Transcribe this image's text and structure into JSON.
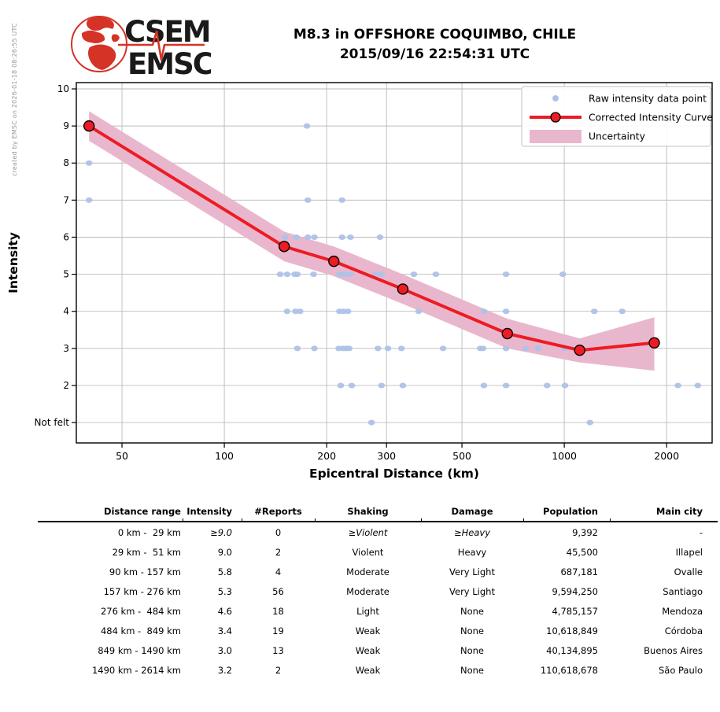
{
  "credit": "created by EMSC on 2026-01-18 08:26:55 UTC",
  "logo": {
    "top": "CSEM",
    "bottom": "EMSC",
    "brand_red": "#d63327",
    "text_color": "#1a1a1a"
  },
  "title": {
    "line1": "M8.3 in OFFSHORE COQUIMBO, CHILE",
    "line2": "2015/09/16 22:54:31 UTC"
  },
  "chart_data": {
    "type": "scatter+line",
    "title": "",
    "xlabel": "Epicentral Distance (km)",
    "ylabel": "Intensity",
    "x_scale": "log",
    "xlim": [
      36.7,
      2722
    ],
    "ylim": [
      0.45,
      10.17
    ],
    "grid": true,
    "legend_position": "upper right",
    "x_ticks": [
      {
        "value": 50,
        "label": "50"
      },
      {
        "value": 100,
        "label": "100"
      },
      {
        "value": 200,
        "label": "200"
      },
      {
        "value": 300,
        "label": "300"
      },
      {
        "value": 500,
        "label": "500"
      },
      {
        "value": 1000,
        "label": "1000"
      },
      {
        "value": 2000,
        "label": "2000"
      }
    ],
    "y_ticks": [
      {
        "value": 10,
        "label": "10"
      },
      {
        "value": 9,
        "label": "9"
      },
      {
        "value": 8,
        "label": "8"
      },
      {
        "value": 7,
        "label": "7"
      },
      {
        "value": 6,
        "label": "6"
      },
      {
        "value": 5,
        "label": "5"
      },
      {
        "value": 4,
        "label": "4"
      },
      {
        "value": 3,
        "label": "3"
      },
      {
        "value": 2,
        "label": "2"
      },
      {
        "value": 1,
        "label": "Not felt"
      }
    ],
    "legend": [
      {
        "type": "dot",
        "label": "Raw intensity data point"
      },
      {
        "type": "line-marker",
        "label": "Corrected Intensity Curve"
      },
      {
        "type": "patch",
        "label": "Uncertainty"
      }
    ],
    "colors": {
      "raw_point": "#aec2e8",
      "curve": "#ed1c24",
      "uncertainty": "#e9b7cd",
      "grid": "#bbbbbb",
      "legend_border": "#cccccc"
    },
    "corrected_curve": {
      "distance_km": [
        40,
        150,
        210,
        335,
        680,
        1110,
        1840
      ],
      "intensity": [
        9.0,
        5.75,
        5.35,
        4.6,
        3.4,
        2.95,
        3.15
      ],
      "upper": [
        9.4,
        6.15,
        5.75,
        5.0,
        3.8,
        3.27,
        3.84
      ],
      "lower": [
        8.6,
        5.35,
        4.95,
        4.2,
        3.0,
        2.62,
        2.4
      ]
    },
    "raw_points": [
      [
        40,
        9
      ],
      [
        175,
        9
      ],
      [
        40,
        8
      ],
      [
        40,
        7
      ],
      [
        176,
        7
      ],
      [
        222,
        7
      ],
      [
        151,
        6
      ],
      [
        163,
        6
      ],
      [
        176,
        6
      ],
      [
        184,
        6
      ],
      [
        222,
        6
      ],
      [
        235,
        6
      ],
      [
        287,
        6
      ],
      [
        146,
        5
      ],
      [
        153,
        5
      ],
      [
        161,
        5
      ],
      [
        164,
        5
      ],
      [
        183,
        5
      ],
      [
        218,
        5
      ],
      [
        223,
        5
      ],
      [
        228,
        5
      ],
      [
        235,
        5
      ],
      [
        278,
        5
      ],
      [
        290,
        5
      ],
      [
        361,
        5
      ],
      [
        419,
        5
      ],
      [
        674,
        5
      ],
      [
        990,
        5
      ],
      [
        153,
        4
      ],
      [
        162,
        4
      ],
      [
        167,
        4
      ],
      [
        218,
        4
      ],
      [
        224,
        4
      ],
      [
        231,
        4
      ],
      [
        373,
        4
      ],
      [
        580,
        4
      ],
      [
        674,
        4
      ],
      [
        1225,
        4
      ],
      [
        1480,
        4
      ],
      [
        164,
        3
      ],
      [
        184,
        3
      ],
      [
        217,
        3
      ],
      [
        223,
        3
      ],
      [
        228,
        3
      ],
      [
        233,
        3
      ],
      [
        283,
        3
      ],
      [
        303,
        3
      ],
      [
        332,
        3
      ],
      [
        440,
        3
      ],
      [
        566,
        3
      ],
      [
        577,
        3
      ],
      [
        674,
        3
      ],
      [
        769,
        3
      ],
      [
        838,
        3
      ],
      [
        1000,
        3
      ],
      [
        220,
        2
      ],
      [
        237,
        2
      ],
      [
        290,
        2
      ],
      [
        335,
        2
      ],
      [
        580,
        2
      ],
      [
        674,
        2
      ],
      [
        890,
        2
      ],
      [
        1005,
        2
      ],
      [
        2160,
        2
      ],
      [
        2470,
        2
      ],
      [
        271,
        1
      ],
      [
        1190,
        1
      ]
    ]
  },
  "table": {
    "headers": [
      "Distance range",
      "Intensity",
      "#Reports",
      "Shaking",
      "Damage",
      "Population",
      "Main city"
    ],
    "rows": [
      {
        "cells": [
          "0 km -  29 km",
          "≥9.0",
          "0",
          "≥Violent",
          "≥Heavy",
          "9,392",
          "-"
        ],
        "italic_cols": [
          1,
          3,
          4
        ]
      },
      {
        "cells": [
          "29 km -  51 km",
          "9.0",
          "2",
          "Violent",
          "Heavy",
          "45,500",
          "Illapel"
        ],
        "italic_cols": []
      },
      {
        "cells": [
          "90 km - 157 km",
          "5.8",
          "4",
          "Moderate",
          "Very Light",
          "687,181",
          "Ovalle"
        ],
        "italic_cols": []
      },
      {
        "cells": [
          "157 km - 276 km",
          "5.3",
          "56",
          "Moderate",
          "Very Light",
          "9,594,250",
          "Santiago"
        ],
        "italic_cols": []
      },
      {
        "cells": [
          "276 km -  484 km",
          "4.6",
          "18",
          "Light",
          "None",
          "4,785,157",
          "Mendoza"
        ],
        "italic_cols": []
      },
      {
        "cells": [
          "484 km -  849 km",
          "3.4",
          "19",
          "Weak",
          "None",
          "10,618,849",
          "Córdoba"
        ],
        "italic_cols": []
      },
      {
        "cells": [
          "849 km - 1490 km",
          "3.0",
          "13",
          "Weak",
          "None",
          "40,134,895",
          "Buenos Aires"
        ],
        "italic_cols": []
      },
      {
        "cells": [
          "1490 km - 2614 km",
          "3.2",
          "2",
          "Weak",
          "None",
          "110,618,678",
          "São Paulo"
        ],
        "italic_cols": []
      }
    ]
  }
}
